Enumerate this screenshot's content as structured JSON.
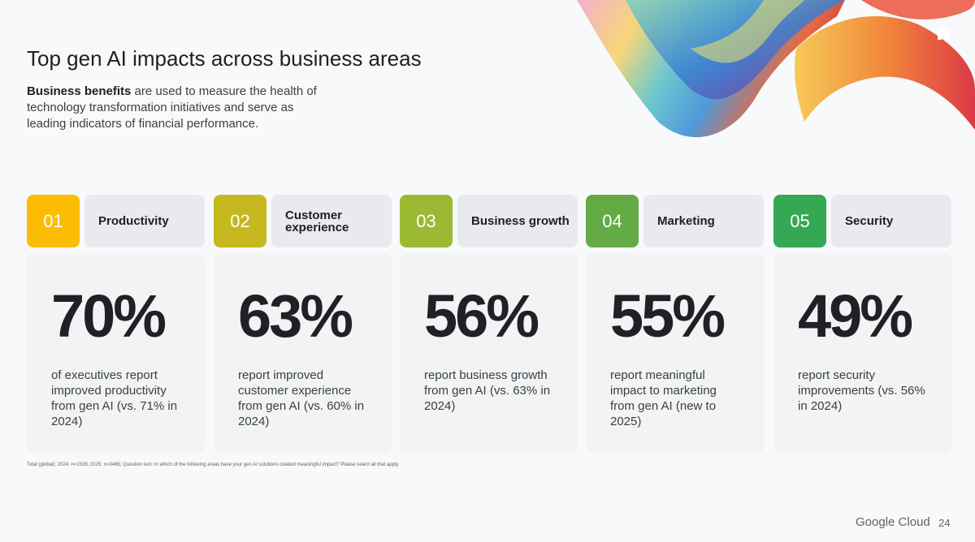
{
  "header": {
    "title": "Top gen AI impacts across business areas",
    "subtitle_bold": "Business benefits",
    "subtitle_rest": " are used to measure the health of technology transformation initiatives and serve as leading indicators of financial performance."
  },
  "home_icon": "home-icon",
  "cards": [
    {
      "number": "01",
      "label": "Productivity",
      "value": "70%",
      "description": "of executives report improved productivity from gen AI (vs. 71% in 2024)",
      "color": "#fbbc04"
    },
    {
      "number": "02",
      "label": "Customer experience",
      "value": "63%",
      "description": "report improved customer experience from gen AI (vs. 60% in 2024)",
      "color": "#c6b81f"
    },
    {
      "number": "03",
      "label": "Business growth",
      "value": "56%",
      "description": "report business growth from gen AI (vs. 63% in 2024)",
      "color": "#9bb933"
    },
    {
      "number": "04",
      "label": "Marketing",
      "value": "55%",
      "description": "report meaningful impact to marketing from gen AI (new to 2025)",
      "color": "#65ab45"
    },
    {
      "number": "05",
      "label": "Security",
      "value": "49%",
      "description": "report security improvements (vs. 56% in 2024)",
      "color": "#34a853"
    }
  ],
  "footnote": "Total (global): 2024: n=1539; 2025: n=3466; Question text: In which of the following areas have your gen AI solutions created meaningful impact? Please select all that apply.",
  "footer": {
    "brand": "Google Cloud",
    "page": "24"
  }
}
